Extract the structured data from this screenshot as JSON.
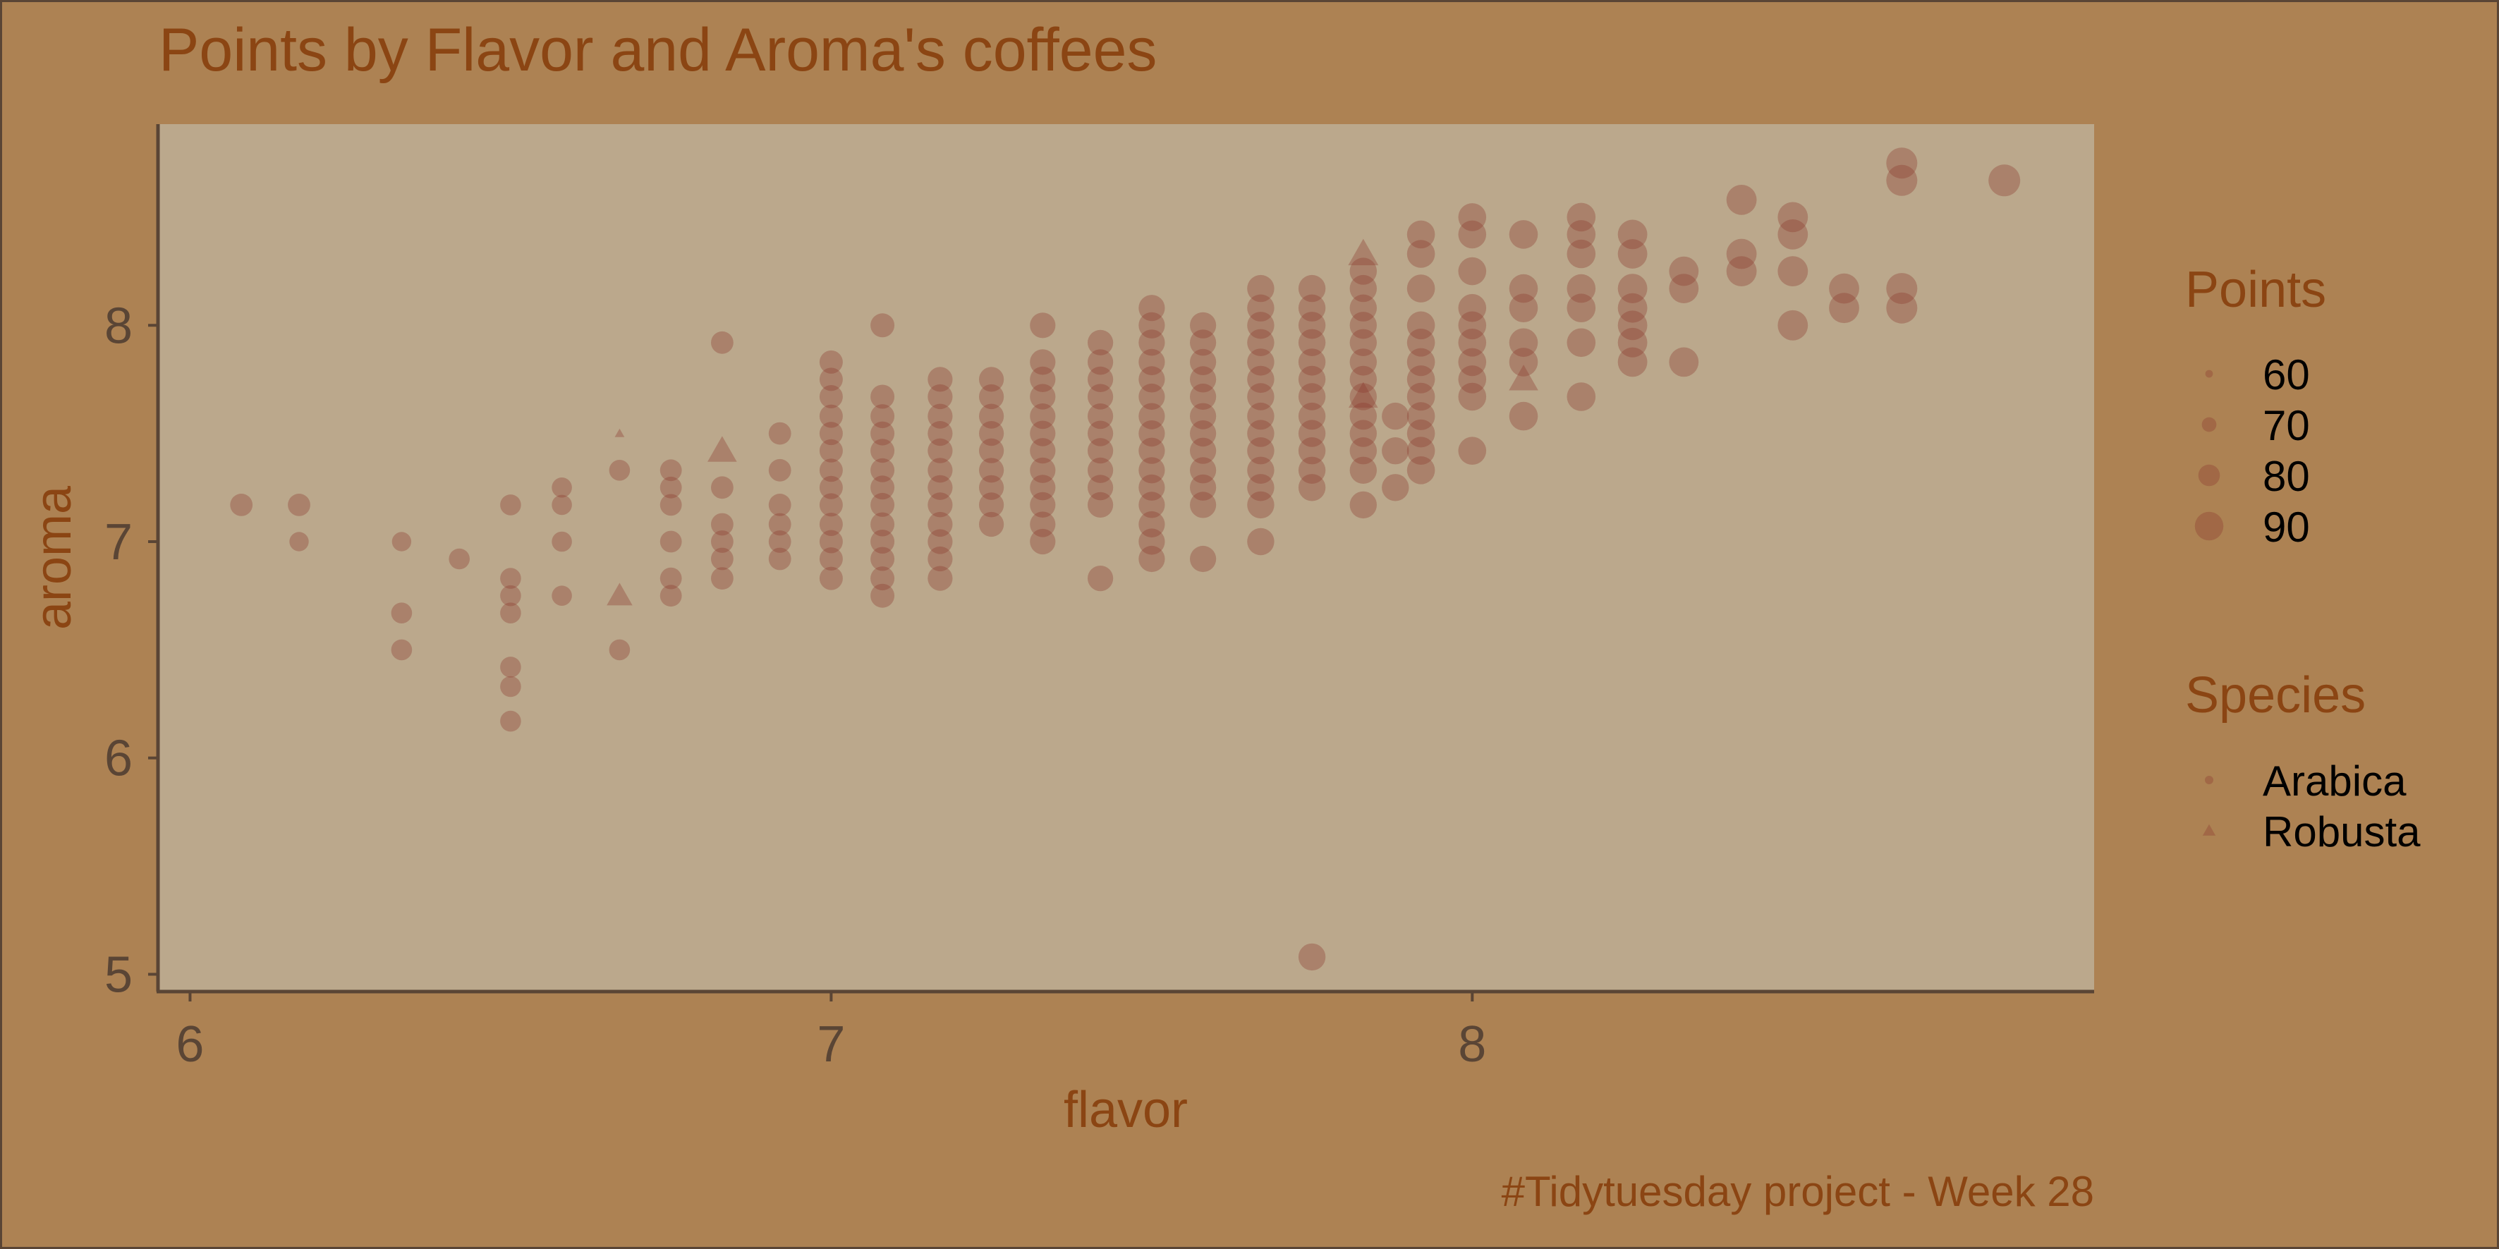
{
  "title": "Points by Flavor and Aroma's coffees",
  "caption": "#Tidytuesday project - Week 28",
  "colors": {
    "background": "#ad8253",
    "panel": "#bba88c",
    "point": "#8b3a2f",
    "title": "#8b4513",
    "axis_text": "#5a4535"
  },
  "legends": {
    "points": {
      "title": "Points",
      "labels": [
        "60",
        "70",
        "80",
        "90"
      ],
      "sizes": [
        60,
        70,
        80,
        90
      ]
    },
    "species": {
      "title": "Species",
      "labels": [
        "Arabica",
        "Robusta"
      ],
      "shapes": [
        "circle",
        "triangle"
      ]
    }
  },
  "chart_data": {
    "type": "scatter",
    "title": "Points by Flavor and Aroma's coffees",
    "xlabel": "flavor",
    "ylabel": "aroma",
    "xlim": [
      5.95,
      8.97
    ],
    "ylim": [
      4.92,
      8.93
    ],
    "x_ticks": [
      "6",
      "7",
      "8"
    ],
    "y_ticks": [
      "5",
      "6",
      "7",
      "8"
    ],
    "grid": false,
    "legend_position": "right",
    "encoding": {
      "size": "Points",
      "shape": "Species",
      "alpha": 0.35
    },
    "robusta": [
      {
        "x": 6.67,
        "y": 6.75,
        "points": 78
      },
      {
        "x": 6.83,
        "y": 7.42,
        "points": 82
      },
      {
        "x": 7.83,
        "y": 8.33,
        "points": 83
      },
      {
        "x": 7.83,
        "y": 7.67,
        "points": 82
      },
      {
        "x": 8.08,
        "y": 7.75,
        "points": 82
      },
      {
        "x": 6.67,
        "y": 7.5,
        "points": 60
      }
    ],
    "arabica_columns": [
      {
        "x": 6.08,
        "ys": [
          7.17
        ],
        "points": 78
      },
      {
        "x": 6.17,
        "ys": [
          7.17
        ],
        "points": 78
      },
      {
        "x": 6.17,
        "ys": [
          7.0
        ],
        "points": 74
      },
      {
        "x": 6.33,
        "ys": [
          7.0
        ],
        "points": 74
      },
      {
        "x": 6.33,
        "ys": [
          6.67,
          6.5
        ],
        "points": 76
      },
      {
        "x": 6.42,
        "ys": [
          6.92
        ],
        "points": 76
      },
      {
        "x": 6.5,
        "ys": [
          7.17,
          6.83,
          6.75,
          6.67,
          6.42,
          6.33,
          6.17
        ],
        "points": 76
      },
      {
        "x": 6.58,
        "ys": [
          7.25,
          7.17,
          7.0,
          6.75
        ],
        "points": 75
      },
      {
        "x": 6.67,
        "ys": [
          7.33,
          6.5
        ],
        "points": 76
      },
      {
        "x": 6.75,
        "ys": [
          7.33,
          7.25,
          7.17,
          7.0,
          6.83,
          6.75
        ],
        "points": 77
      },
      {
        "x": 6.83,
        "ys": [
          7.92,
          7.25,
          7.08,
          7.0,
          6.92,
          6.83
        ],
        "points": 78
      },
      {
        "x": 6.92,
        "ys": [
          7.5,
          7.33,
          7.17,
          7.08,
          7.0,
          6.92
        ],
        "points": 78
      },
      {
        "x": 7.0,
        "ys": [
          7.83,
          7.75,
          7.67,
          7.58,
          7.5,
          7.42,
          7.33,
          7.25,
          7.17,
          7.08,
          7.0,
          6.92,
          6.83
        ],
        "points": 79
      },
      {
        "x": 7.08,
        "ys": [
          8.0,
          7.67,
          7.58,
          7.5,
          7.42,
          7.33,
          7.25,
          7.17,
          7.08,
          7.0,
          6.92,
          6.83,
          6.75
        ],
        "points": 80
      },
      {
        "x": 7.17,
        "ys": [
          7.75,
          7.67,
          7.58,
          7.5,
          7.42,
          7.33,
          7.25,
          7.17,
          7.08,
          7.0,
          6.92,
          6.83
        ],
        "points": 81
      },
      {
        "x": 7.25,
        "ys": [
          7.75,
          7.67,
          7.58,
          7.5,
          7.42,
          7.33,
          7.25,
          7.17,
          7.08
        ],
        "points": 81
      },
      {
        "x": 7.33,
        "ys": [
          8.0,
          7.83,
          7.75,
          7.67,
          7.58,
          7.5,
          7.42,
          7.33,
          7.25,
          7.17,
          7.08,
          7.0
        ],
        "points": 82
      },
      {
        "x": 7.42,
        "ys": [
          7.92,
          7.83,
          7.75,
          7.67,
          7.58,
          7.5,
          7.42,
          7.33,
          7.25,
          7.17,
          6.83
        ],
        "points": 82
      },
      {
        "x": 7.5,
        "ys": [
          8.08,
          8.0,
          7.92,
          7.83,
          7.75,
          7.67,
          7.58,
          7.5,
          7.42,
          7.33,
          7.25,
          7.17,
          7.08,
          7.0,
          6.92
        ],
        "points": 83
      },
      {
        "x": 7.58,
        "ys": [
          8.0,
          7.92,
          7.83,
          7.75,
          7.67,
          7.58,
          7.5,
          7.42,
          7.33,
          7.25,
          7.17,
          6.92
        ],
        "points": 83
      },
      {
        "x": 7.67,
        "ys": [
          8.17,
          8.08,
          8.0,
          7.92,
          7.83,
          7.75,
          7.67,
          7.58,
          7.5,
          7.42,
          7.33,
          7.25,
          7.17,
          7.0
        ],
        "points": 84
      },
      {
        "x": 7.75,
        "ys": [
          8.17,
          8.08,
          8.0,
          7.92,
          7.83,
          7.75,
          7.67,
          7.58,
          7.5,
          7.42,
          7.33,
          7.25,
          5.08
        ],
        "points": 84
      },
      {
        "x": 7.83,
        "ys": [
          8.25,
          8.17,
          8.08,
          8.0,
          7.92,
          7.83,
          7.75,
          7.67,
          7.58,
          7.5,
          7.42,
          7.33,
          7.17
        ],
        "points": 84
      },
      {
        "x": 7.88,
        "ys": [
          7.25,
          7.42,
          7.58
        ],
        "points": 84
      },
      {
        "x": 7.92,
        "ys": [
          8.42,
          8.33,
          8.17,
          8.0,
          7.92,
          7.83,
          7.75,
          7.67,
          7.58,
          7.5,
          7.42,
          7.33
        ],
        "points": 85
      },
      {
        "x": 8.0,
        "ys": [
          8.5,
          8.42,
          8.25,
          8.08,
          8.0,
          7.92,
          7.83,
          7.75,
          7.67,
          7.42
        ],
        "points": 85
      },
      {
        "x": 8.08,
        "ys": [
          8.42,
          8.17,
          8.08,
          7.92,
          7.83,
          7.58
        ],
        "points": 86
      },
      {
        "x": 8.17,
        "ys": [
          8.5,
          8.42,
          8.33,
          8.17,
          8.08,
          7.92,
          7.67
        ],
        "points": 86
      },
      {
        "x": 8.25,
        "ys": [
          8.42,
          8.33,
          8.17,
          8.08,
          8.0,
          7.92,
          7.83
        ],
        "points": 87
      },
      {
        "x": 8.33,
        "ys": [
          8.25,
          8.17,
          7.83
        ],
        "points": 87
      },
      {
        "x": 8.42,
        "ys": [
          8.58,
          8.33,
          8.25
        ],
        "points": 88
      },
      {
        "x": 8.5,
        "ys": [
          8.5,
          8.42,
          8.25,
          8.0
        ],
        "points": 88
      },
      {
        "x": 8.58,
        "ys": [
          8.17,
          8.08
        ],
        "points": 88
      },
      {
        "x": 8.67,
        "ys": [
          8.75,
          8.67,
          8.17,
          8.08
        ],
        "points": 89
      },
      {
        "x": 8.83,
        "ys": [
          8.67
        ],
        "points": 90
      }
    ]
  }
}
